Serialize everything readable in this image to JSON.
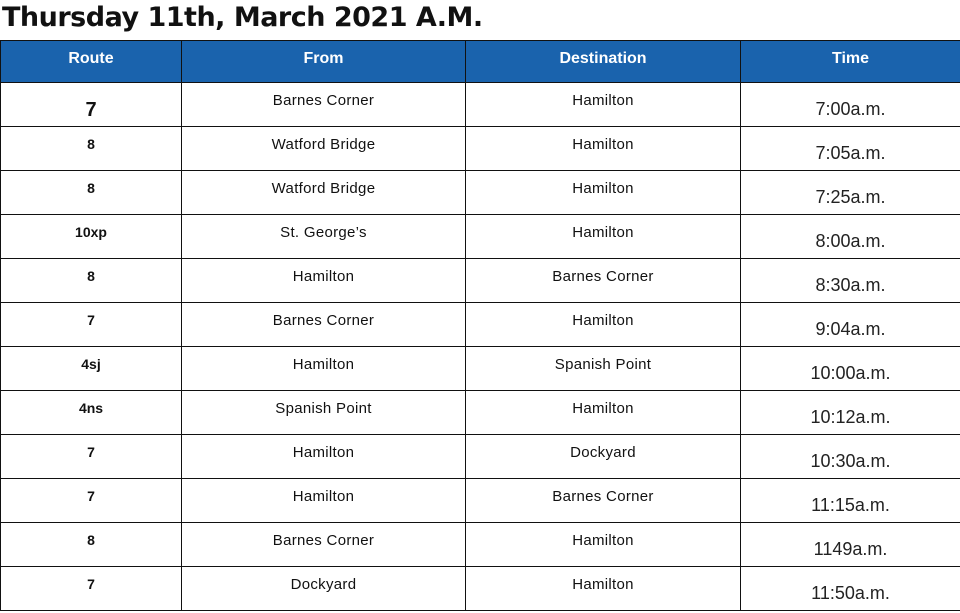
{
  "title": "Thursday 11th, March 2021 A.M.",
  "columns": [
    "Route",
    "From",
    "Destination",
    "Time"
  ],
  "rows": [
    {
      "route": "7",
      "from": "Barnes Corner",
      "destination": "Hamilton",
      "time": "7:00a.m."
    },
    {
      "route": "8",
      "from": "Watford Bridge",
      "destination": "Hamilton",
      "time": "7:05a.m."
    },
    {
      "route": "8",
      "from": "Watford Bridge",
      "destination": "Hamilton",
      "time": "7:25a.m."
    },
    {
      "route": "10xp",
      "from": "St. George’s",
      "destination": "Hamilton",
      "time": "8:00a.m."
    },
    {
      "route": "8",
      "from": "Hamilton",
      "destination": "Barnes Corner",
      "time": "8:30a.m."
    },
    {
      "route": "7",
      "from": "Barnes Corner",
      "destination": "Hamilton",
      "time": "9:04a.m."
    },
    {
      "route": "4sj",
      "from": "Hamilton",
      "destination": "Spanish Point",
      "time": "10:00a.m."
    },
    {
      "route": "4ns",
      "from": "Spanish Point",
      "destination": "Hamilton",
      "time": "10:12a.m."
    },
    {
      "route": "7",
      "from": "Hamilton",
      "destination": "Dockyard",
      "time": "10:30a.m."
    },
    {
      "route": "7",
      "from": "Hamilton",
      "destination": "Barnes Corner",
      "time": "11:15a.m."
    },
    {
      "route": "8",
      "from": "Barnes Corner",
      "destination": "Hamilton",
      "time": "1149a.m."
    },
    {
      "route": "7",
      "from": "Dockyard",
      "destination": "Hamilton",
      "time": "11:50a.m."
    }
  ],
  "colors": {
    "header_bg": "#1a63ad",
    "header_text": "#ffffff"
  }
}
